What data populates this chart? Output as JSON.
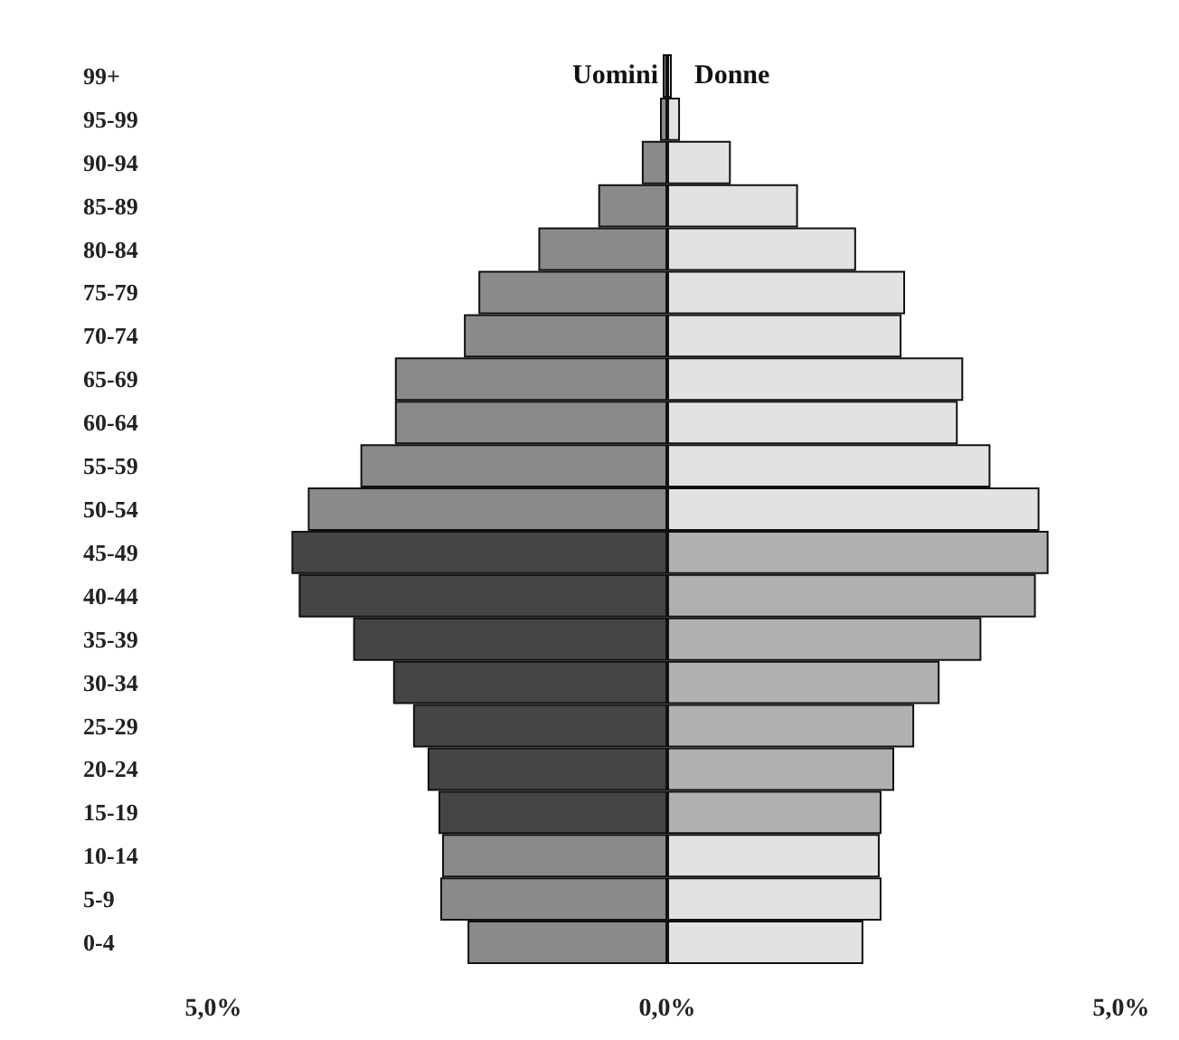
{
  "chart_data": {
    "type": "bar",
    "orientation": "horizontal",
    "stacked": true,
    "categories": [
      "99+",
      "95-99",
      "90-94",
      "85-89",
      "80-84",
      "75-79",
      "70-74",
      "65-69",
      "60-64",
      "55-59",
      "50-54",
      "45-49",
      "40-44",
      "35-39",
      "30-34",
      "25-29",
      "20-24",
      "15-19",
      "10-14",
      "5-9",
      "0-4"
    ],
    "series": [
      {
        "name": "Uomini",
        "colors": [
          "#8a8a8a",
          "#8a8a8a",
          "#8a8a8a",
          "#8a8a8a",
          "#8a8a8a",
          "#8a8a8a",
          "#8a8a8a",
          "#8a8a8a",
          "#8a8a8a",
          "#8a8a8a",
          "#8a8a8a",
          "#454545",
          "#454545",
          "#454545",
          "#454545",
          "#454545",
          "#454545",
          "#454545",
          "#8a8a8a",
          "#8a8a8a",
          "#8a8a8a"
        ],
        "values": [
          -0.05,
          -0.08,
          -0.28,
          -0.76,
          -1.42,
          -2.08,
          -2.24,
          -3.0,
          -3.0,
          -3.38,
          -3.96,
          -4.14,
          -4.06,
          -3.46,
          -3.02,
          -2.8,
          -2.64,
          -2.52,
          -2.48,
          -2.5,
          -2.2
        ]
      },
      {
        "name": "Donne",
        "colors": [
          "#e2e2e2",
          "#e2e2e2",
          "#e2e2e2",
          "#e2e2e2",
          "#e2e2e2",
          "#e2e2e2",
          "#e2e2e2",
          "#e2e2e2",
          "#e2e2e2",
          "#e2e2e2",
          "#e2e2e2",
          "#b0b0b0",
          "#b0b0b0",
          "#b0b0b0",
          "#b0b0b0",
          "#b0b0b0",
          "#b0b0b0",
          "#b0b0b0",
          "#e2e2e2",
          "#e2e2e2",
          "#e2e2e2"
        ],
        "values": [
          0.05,
          0.14,
          0.7,
          1.44,
          2.08,
          2.62,
          2.58,
          3.26,
          3.2,
          3.56,
          4.1,
          4.2,
          4.06,
          3.46,
          3.0,
          2.72,
          2.5,
          2.36,
          2.34,
          2.36,
          2.16
        ]
      }
    ],
    "xlim": [
      -5,
      5
    ],
    "xticks": [
      {
        "value": -5,
        "label": "5,0%"
      },
      {
        "value": 0,
        "label": "0,0%"
      },
      {
        "value": 5,
        "label": "5,0%"
      }
    ],
    "grid": false,
    "legend": false
  }
}
